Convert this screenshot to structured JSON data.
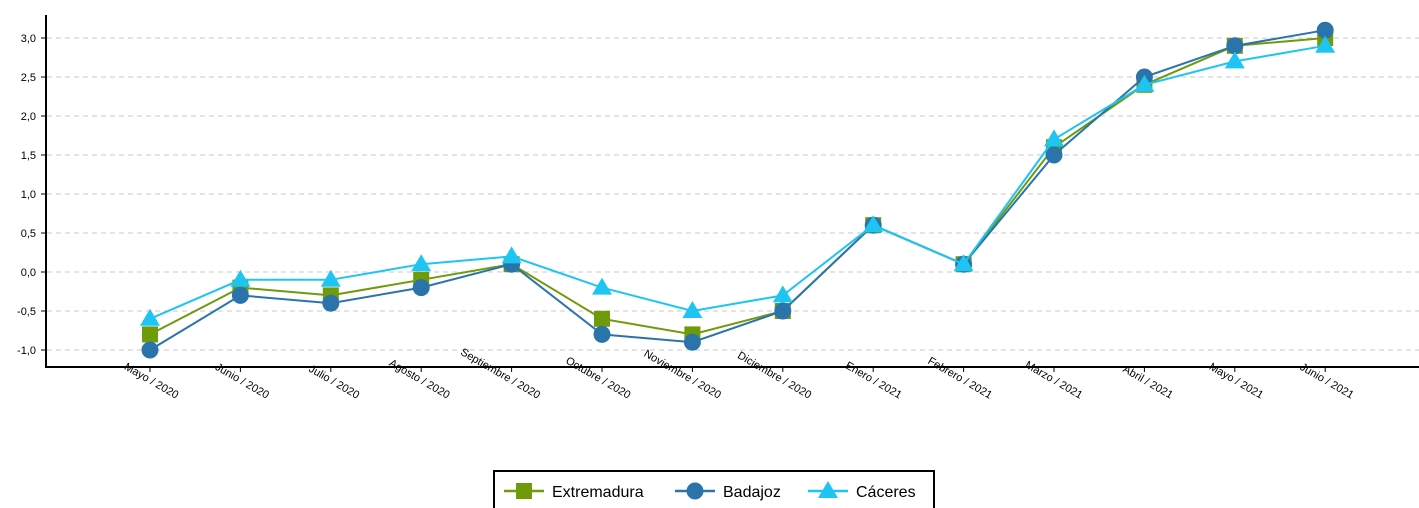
{
  "chart_data": {
    "type": "line",
    "categories": [
      "Mayo / 2020",
      "Junio / 2020",
      "Julio / 2020",
      "Agosto / 2020",
      "Septiembre / 2020",
      "Octubre / 2020",
      "Noviembre / 2020",
      "Diciembre / 2020",
      "Enero / 2021",
      "Febrero / 2021",
      "Marzo / 2021",
      "Abril / 2021",
      "Mayo / 2021",
      "Junio / 2021"
    ],
    "series": [
      {
        "name": "Extremadura",
        "color": "#6f9a0a",
        "marker": "square",
        "values": [
          -0.8,
          -0.2,
          -0.3,
          -0.1,
          0.1,
          -0.6,
          -0.8,
          -0.5,
          0.6,
          0.1,
          1.6,
          2.4,
          2.9,
          3.0
        ]
      },
      {
        "name": "Badajoz",
        "color": "#2a74ab",
        "marker": "circle",
        "values": [
          -1.0,
          -0.3,
          -0.4,
          -0.2,
          0.1,
          -0.8,
          -0.9,
          -0.5,
          0.6,
          0.1,
          1.5,
          2.5,
          2.9,
          3.1
        ]
      },
      {
        "name": "Cáceres",
        "color": "#1ec5f2",
        "marker": "triangle",
        "values": [
          -0.6,
          -0.1,
          -0.1,
          0.1,
          0.2,
          -0.2,
          -0.5,
          -0.3,
          0.6,
          0.1,
          1.7,
          2.4,
          2.7,
          2.9
        ]
      }
    ],
    "yticks": [
      "-1,0",
      "-0,5",
      "0,0",
      "0,5",
      "1,0",
      "1,5",
      "2,0",
      "2,5",
      "3,0"
    ],
    "ylim": [
      -1.2,
      3.3
    ],
    "grid": true,
    "legend_position": "bottom-center"
  }
}
